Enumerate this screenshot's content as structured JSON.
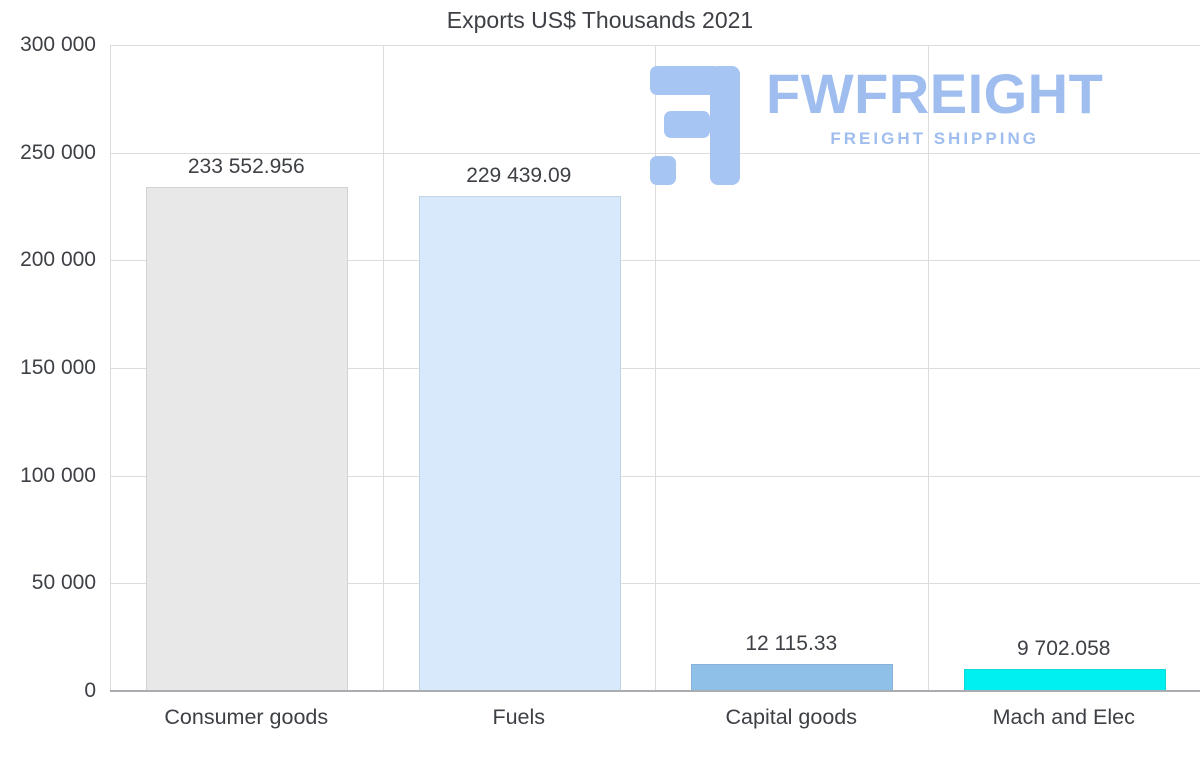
{
  "watermark": {
    "brand": "FWFREIGHT",
    "tagline": "FREIGHT SHIPPING",
    "color": "#9fbdee",
    "icon_color": "#a7c5f3"
  },
  "chart_data": {
    "type": "bar",
    "title": "Exports US$ Thousands 2021",
    "categories": [
      "Consumer goods",
      "Fuels",
      "Capital goods",
      "Mach and Elec"
    ],
    "values": [
      233552.956,
      229439.09,
      12115.33,
      9702.058
    ],
    "value_labels": [
      "233 552.956",
      "229 439.09",
      "12 115.33",
      "9 702.058"
    ],
    "colors": [
      "#e8e8e8",
      "#d7e9fb",
      "#8fc0e8",
      "#00f0f0"
    ],
    "xlabel": "",
    "ylabel": "",
    "ylim": [
      0,
      300000
    ],
    "yticks": [
      0,
      50000,
      100000,
      150000,
      200000,
      250000,
      300000
    ],
    "ytick_labels": [
      "0",
      "50 000",
      "100 000",
      "150 000",
      "200 000",
      "250 000",
      "300 000"
    ],
    "grid": true,
    "legend": "none"
  }
}
